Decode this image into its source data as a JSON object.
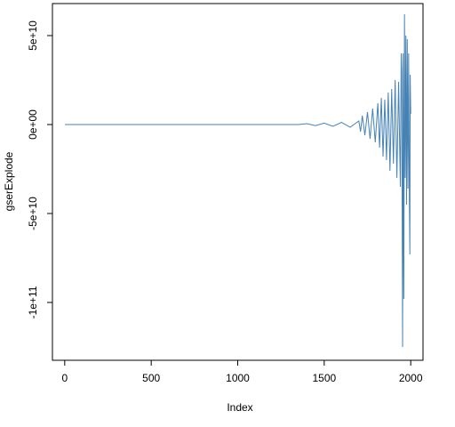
{
  "chart_data": {
    "type": "line",
    "xlabel": "Index",
    "ylabel": "gserExplode",
    "x": [
      1,
      200,
      400,
      600,
      800,
      1000,
      1200,
      1350,
      1400,
      1450,
      1500,
      1550,
      1600,
      1650,
      1700,
      1710,
      1720,
      1735,
      1750,
      1765,
      1780,
      1795,
      1810,
      1820,
      1830,
      1840,
      1850,
      1860,
      1870,
      1880,
      1890,
      1900,
      1910,
      1920,
      1930,
      1940,
      1945,
      1948,
      1953,
      1956,
      1960,
      1964,
      1968,
      1972,
      1976,
      1980,
      1984,
      1988,
      1992,
      1995,
      1997,
      2000
    ],
    "series": [
      {
        "name": "gserExplode",
        "color": "#4682b4",
        "values": [
          0,
          0,
          0,
          0,
          0,
          0,
          0,
          0,
          500000000.0,
          -600000000.0,
          800000000.0,
          -1000000000.0,
          1200000000.0,
          -1500000000.0,
          2000000000.0,
          -4000000000.0,
          5000000000.0,
          -6000000000.0,
          7000000000.0,
          -8000000000.0,
          9000000000.0,
          -10000000000.0,
          12000000000.0,
          -13000000000.0,
          15000000000.0,
          -18000000000.0,
          14000000000.0,
          -20000000000.0,
          18000000000.0,
          -26000000000.0,
          20000000000.0,
          -22000000000.0,
          25000000000.0,
          -30000000000.0,
          24000000000.0,
          -35000000000.0,
          40000000000.0,
          30000000000.0,
          -125000000000.0,
          40000000000.0,
          -98000000000.0,
          62000000000.0,
          -30000000000.0,
          50000000000.0,
          -45000000000.0,
          48000000000.0,
          -36000000000.0,
          40000000000.0,
          -40000000000.0,
          -73000000000.0,
          28000000000.0,
          6000000000.0
        ]
      }
    ],
    "xlim": [
      -71,
      2071
    ],
    "ylim": [
      -132500000000.0,
      68000000000.0
    ],
    "xticks": [
      0,
      500,
      1000,
      1500,
      2000
    ],
    "yticks": [
      {
        "value": -100000000000.0,
        "label": "-1e+11"
      },
      {
        "value": -50000000000.0,
        "label": "-5e+10"
      },
      {
        "value": 0,
        "label": "0e+00"
      },
      {
        "value": 50000000000.0,
        "label": "5e+10"
      }
    ]
  }
}
